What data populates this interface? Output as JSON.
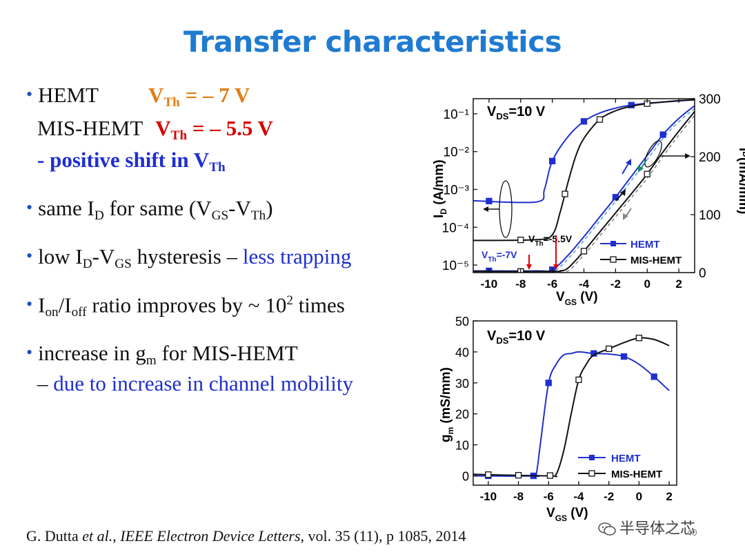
{
  "slide": {
    "title": "Transfer characteristics",
    "bullets": {
      "hemt": {
        "label": "HEMT",
        "vth_base": "V",
        "vth_sub": "Th",
        "vth_value": " = – 7 V"
      },
      "mis": {
        "label": "MIS-HEMT",
        "vth_base": "V",
        "vth_sub": "Th",
        "vth_value": " = – 5.5 V"
      },
      "shift": {
        "prefix": "- positive shift in V",
        "sub": "Th"
      },
      "same_id": {
        "t1": "same I",
        "s1": "D",
        "t2": " for same (V",
        "s2": "GS",
        "t3": "-V",
        "s3": "Th",
        "t4": ")"
      },
      "hysteresis": {
        "t1": "low I",
        "s1": "D",
        "t2": "-V",
        "s2": "GS",
        "t3": " hysteresis – ",
        "t4": "less trapping"
      },
      "ratio": {
        "t1": "I",
        "s1": "on",
        "t2": "/I",
        "s2": "off",
        "t3": "  ratio improves by ~ 10",
        "sup": "2",
        "t4": " times"
      },
      "gm": {
        "t1": "increase in g",
        "s1": "m",
        "t2": " for MIS-HEMT"
      },
      "mobility": {
        "dash": "– ",
        "text": "due to increase in channel mobility"
      }
    },
    "citation": {
      "author": "G. Dutta ",
      "etal": "et al.",
      "sep": ", ",
      "journal": "IEEE Electron Device Letters",
      "rest": ", vol. 35 (11), p 1085, 2014"
    },
    "watermark": "半导体之芯",
    "page_number": "40"
  },
  "chart_data": [
    {
      "type": "line",
      "annotation": "V_DS=10 V",
      "xlabel": "V_GS (V)",
      "ylabel_left": "I_D (A/mm)",
      "ylabel_right": "I_D(mA/mm)",
      "xlim": [
        -11,
        3
      ],
      "ylim_left_log": [
        -5.2,
        -0.6
      ],
      "ylim_right": [
        0,
        300
      ],
      "xticks": [
        -10,
        -8,
        -6,
        -4,
        -2,
        0,
        2
      ],
      "yticks_left": [
        "10⁻⁵",
        "10⁻⁴",
        "10⁻³",
        "10⁻²",
        "10⁻¹"
      ],
      "yticks_right": [
        0,
        100,
        200,
        300
      ],
      "legend": [
        "HEMT",
        "MIS-HEMT"
      ],
      "vth_labels": {
        "hemt": "V_Th=-7V",
        "mis": "V_Th=-5.5V"
      },
      "series": [
        {
          "name": "HEMT",
          "scale": "log",
          "color": "#1f2fd0",
          "marker": "filled-square",
          "x": [
            -11,
            -7,
            -6.5,
            -6,
            -5,
            -4,
            -3,
            -2,
            -1,
            0,
            1,
            2,
            3
          ],
          "logy": [
            -3.3,
            -3.33,
            -3.0,
            -2.25,
            -1.6,
            -1.2,
            -0.98,
            -0.85,
            -0.77,
            -0.72,
            -0.69,
            -0.66,
            -0.63
          ],
          "markers_x": [
            -10,
            -6,
            -4,
            -1
          ]
        },
        {
          "name": "MIS-HEMT",
          "scale": "log",
          "color": "#111111",
          "marker": "open-square",
          "x": [
            -11,
            -7,
            -6,
            -5.5,
            -5,
            -4.5,
            -4,
            -3,
            -2,
            -1,
            0,
            1,
            2,
            3
          ],
          "logy": [
            -4.35,
            -4.33,
            -4.2,
            -3.6,
            -2.8,
            -2.1,
            -1.65,
            -1.15,
            -0.92,
            -0.8,
            -0.73,
            -0.69,
            -0.65,
            -0.63
          ],
          "markers_x": [
            -8,
            -5.2,
            -3,
            0
          ]
        },
        {
          "name": "HEMT",
          "scale": "linear",
          "color": "#1f2fd0",
          "marker": "filled-square",
          "x": [
            -11,
            -7,
            -6,
            -5,
            -4,
            -3,
            -2,
            -1,
            0,
            1,
            2,
            3
          ],
          "y": [
            3,
            3,
            5,
            30,
            62,
            96,
            130,
            166,
            202,
            238,
            266,
            288
          ],
          "markers_x": [
            -10,
            -6,
            -2,
            1
          ]
        },
        {
          "name": "MIS-HEMT",
          "scale": "linear",
          "color": "#111111",
          "marker": "open-square",
          "x": [
            -11,
            -6,
            -5.5,
            -5,
            -4,
            -3,
            -2,
            -1,
            0,
            1,
            2,
            3
          ],
          "y": [
            2,
            2,
            3,
            8,
            37,
            70,
            103,
            136,
            170,
            208,
            244,
            278
          ],
          "markers_x": [
            -8,
            -4,
            0
          ]
        }
      ]
    },
    {
      "type": "line",
      "annotation": "V_DS=10 V",
      "xlabel": "V_GS (V)",
      "ylabel": "g_m (mS/mm)",
      "xlim": [
        -11,
        2.5
      ],
      "ylim": [
        -3,
        50
      ],
      "xticks": [
        -10,
        -8,
        -6,
        -4,
        -2,
        0,
        2
      ],
      "yticks": [
        0,
        10,
        20,
        30,
        40,
        50
      ],
      "legend": [
        "HEMT",
        "MIS-HEMT"
      ],
      "series": [
        {
          "name": "HEMT",
          "color": "#1f2fd0",
          "marker": "filled-square",
          "x": [
            -11,
            -7,
            -6.8,
            -6.5,
            -6,
            -5.5,
            -5,
            -4.5,
            -4,
            -3,
            -2,
            -1,
            0,
            1,
            2
          ],
          "y": [
            0,
            0,
            1,
            12,
            30,
            36,
            39,
            39.5,
            40,
            39.5,
            39.3,
            38.5,
            36,
            32,
            27.5
          ],
          "markers_x": [
            -10,
            -7,
            -6,
            -3,
            -1,
            1
          ]
        },
        {
          "name": "MIS-HEMT",
          "color": "#111111",
          "marker": "open-square",
          "x": [
            -11,
            -6,
            -5.5,
            -5,
            -4.5,
            -4,
            -3.5,
            -3,
            -2,
            -1,
            0,
            1,
            2
          ],
          "y": [
            0.5,
            0,
            0.5,
            8,
            20,
            31,
            36,
            39,
            41,
            43,
            44.5,
            44,
            42
          ],
          "markers_x": [
            -10,
            -8,
            -5.9,
            -4,
            -2,
            0
          ]
        }
      ]
    }
  ]
}
